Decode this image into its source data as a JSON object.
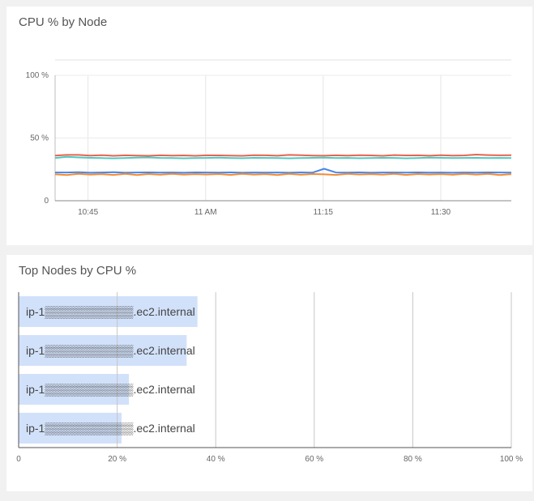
{
  "line_panel": {
    "title": "CPU % by Node"
  },
  "bar_panel": {
    "title": "Top Nodes by CPU %"
  },
  "chart_data": [
    {
      "type": "line",
      "title": "CPU % by Node",
      "ylim": [
        0,
        100
      ],
      "yticks": [
        "0",
        "50 %",
        "100 %"
      ],
      "ytick_values": [
        0,
        50,
        100
      ],
      "xticks": [
        "10:45",
        "11 AM",
        "11:15",
        "11:30"
      ],
      "xtick_values": [
        10.75,
        11.0,
        11.25,
        11.5
      ],
      "xlim": [
        10.68,
        11.65
      ],
      "grid": true,
      "series": [
        {
          "color": "#e8634f",
          "values": [
            36,
            36.5,
            36.5,
            36,
            36.3,
            35.8,
            36.2,
            36,
            35.8,
            36.2,
            36,
            36.1,
            35.8,
            36.2,
            36.1,
            36,
            35.8,
            36.3,
            36.2,
            35.9,
            36.5,
            36.3,
            36,
            35.9,
            36.2,
            36,
            36.3,
            36.1,
            35.8,
            36.4,
            36.1,
            36.2,
            35.9,
            36.3,
            36,
            36.1,
            36.8,
            36.4,
            36.2,
            36.3
          ]
        },
        {
          "color": "#4fc9c2",
          "values": [
            34,
            35,
            34.5,
            34.2,
            34,
            33.8,
            34,
            34.3,
            34.5,
            34.1,
            34,
            33.8,
            34,
            34.1,
            34.3,
            34,
            33.9,
            34.2,
            34.1,
            34,
            33.8,
            34,
            34.2,
            34.4,
            34,
            34.1,
            33.9,
            34,
            34.2,
            34.1,
            33.8,
            34,
            34.3,
            34.2,
            34,
            34.1,
            34.2,
            34,
            34.1,
            34
          ]
        },
        {
          "color": "#4a86e8",
          "values": [
            22.5,
            22.5,
            22.8,
            22.3,
            22.5,
            22.7,
            22.3,
            22.5,
            22.6,
            22.4,
            22.5,
            22.3,
            22.6,
            22.5,
            22.4,
            22.6,
            22.3,
            22.5,
            22.4,
            22.5,
            22.3,
            22.6,
            22.4,
            25.5,
            22.5,
            22.4,
            22.6,
            22.3,
            22.5,
            22.5,
            22.4,
            22.6,
            22.4,
            22.5,
            22.3,
            22.5,
            22.4,
            22.6,
            22.5,
            22.4
          ]
        },
        {
          "color": "#f08c36",
          "values": [
            21,
            20.5,
            21.5,
            20.8,
            21.2,
            20.6,
            21.5,
            20.5,
            21.3,
            20.7,
            21.4,
            20.8,
            21.2,
            20.9,
            21.3,
            20.6,
            21.5,
            20.8,
            21.2,
            20.5,
            21.4,
            20.7,
            21.3,
            21,
            20.6,
            21.5,
            20.9,
            21.2,
            20.8,
            21.4,
            20.6,
            21.3,
            20.9,
            21.2,
            20.7,
            21.5,
            20.8,
            21.4,
            20.5,
            21.2
          ]
        }
      ]
    },
    {
      "type": "bar",
      "orientation": "horizontal",
      "title": "Top Nodes by CPU %",
      "categories": [
        "ip-1▒▒▒▒▒▒▒▒▒▒▒.ec2.internal",
        "ip-1▒▒▒▒▒▒▒▒▒▒▒.ec2.internal",
        "ip-1▒▒▒▒▒▒▒▒▒▒▒.ec2.internal",
        "ip-1▒▒▒▒▒▒▒▒▒▒▒.ec2.internal"
      ],
      "values": [
        36.3,
        34.1,
        22.4,
        20.9
      ],
      "xlim": [
        0,
        100
      ],
      "xticks": [
        "0",
        "20 %",
        "40 %",
        "60 %",
        "80 %",
        "100 %"
      ],
      "xtick_values": [
        0,
        20,
        40,
        60,
        80,
        100
      ],
      "bar_color": "#d2e1fa",
      "grid": true
    }
  ]
}
